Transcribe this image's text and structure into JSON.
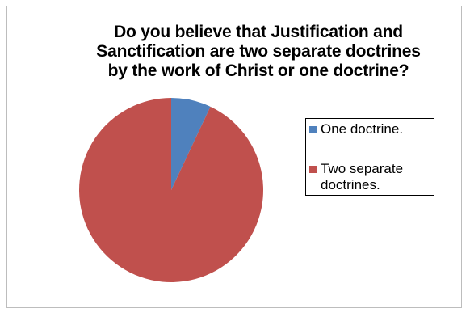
{
  "chart_data": {
    "type": "pie",
    "title_lines": [
      "Do you believe that Justification and",
      "Sanctification are two separate doctrines",
      "by the work of Christ or one doctrine?"
    ],
    "slices": [
      {
        "label": "One doctrine.",
        "value": 7,
        "color": "#4f81bd"
      },
      {
        "label_lines": [
          "Two separate",
          "doctrines."
        ],
        "value": 93,
        "color": "#c0504d"
      }
    ],
    "start_angle_deg": 0,
    "direction": "clockwise",
    "legend_position": "right"
  }
}
